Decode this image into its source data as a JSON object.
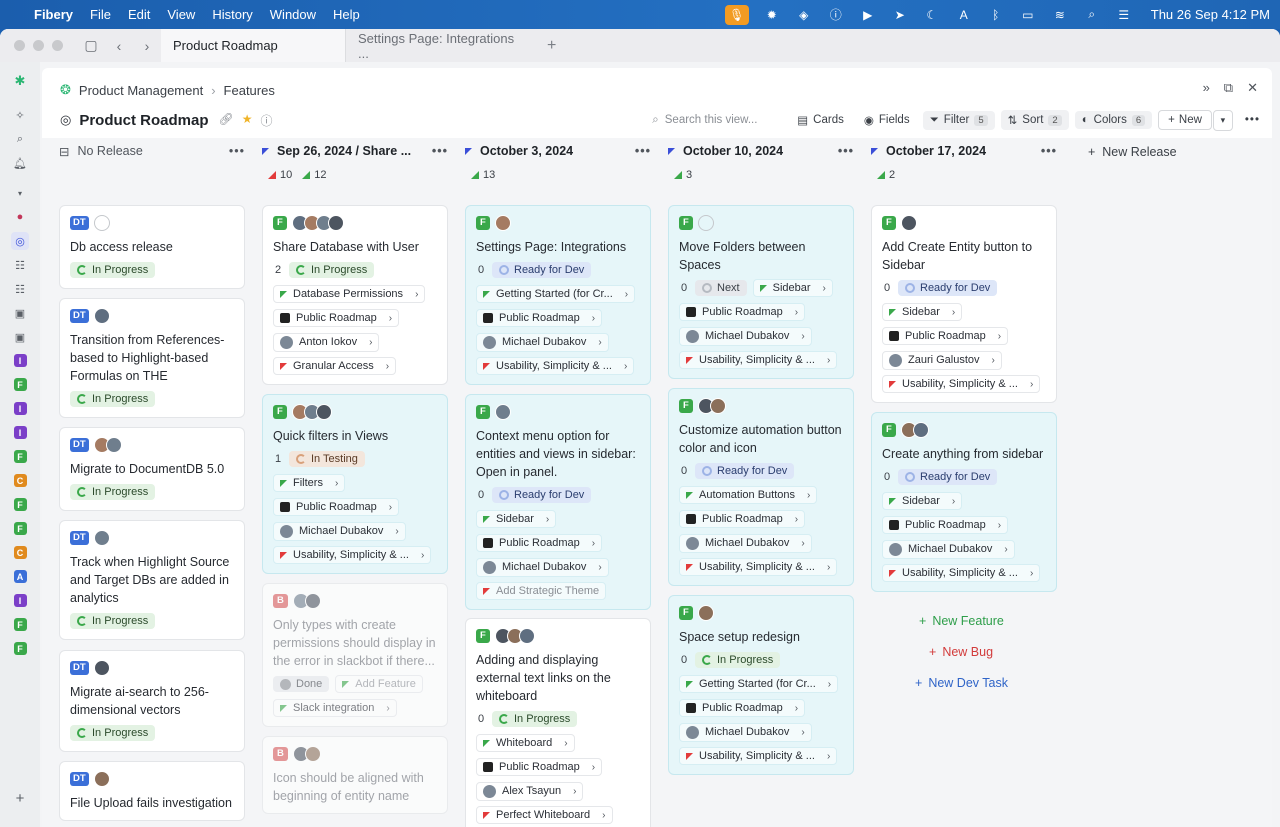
{
  "menubar": {
    "app": "Fibery",
    "items": [
      "File",
      "Edit",
      "View",
      "History",
      "Window",
      "Help"
    ],
    "clock": "Thu 26 Sep  4:12 PM"
  },
  "tabs": [
    {
      "label": "Product Roadmap"
    },
    {
      "label": "Settings Page: Integrations ..."
    }
  ],
  "breadcrumb": {
    "space": "Product Management",
    "database": "Features"
  },
  "view": {
    "title": "Product Roadmap",
    "search_placeholder": "Search this view...",
    "cards_label": "Cards",
    "fields_label": "Fields",
    "filter_label": "Filter",
    "filter_count": "5",
    "sort_label": "Sort",
    "sort_count": "2",
    "colors_label": "Colors",
    "colors_count": "6",
    "new_label": "New"
  },
  "new_release_label": "New Release",
  "sidebar_badges": [
    "I",
    "F",
    "I",
    "I",
    "F",
    "C",
    "F",
    "F",
    "C",
    "A",
    "I",
    "F",
    "F"
  ],
  "columns": [
    {
      "title": "No Release",
      "cards": [
        {
          "badge": "DT",
          "title": "Db access release",
          "rows": [
            {
              "status": "In Progress",
              "kind": "ip"
            }
          ]
        },
        {
          "badge": "DT",
          "title": "Transition from References-based to Highlight-based Formulas on THE",
          "rows": [
            {
              "status": "In Progress",
              "kind": "ip"
            }
          ]
        },
        {
          "badge": "DT",
          "title": "Migrate to DocumentDB 5.0",
          "rows": [
            {
              "status": "In Progress",
              "kind": "ip"
            }
          ]
        },
        {
          "badge": "DT",
          "title": "Track when Highlight Source and Target DBs are added in analytics",
          "rows": [
            {
              "status": "In Progress",
              "kind": "ip"
            }
          ]
        },
        {
          "badge": "DT",
          "title": "Migrate ai-search to 256-dimensional vectors",
          "rows": [
            {
              "status": "In Progress",
              "kind": "ip"
            }
          ]
        },
        {
          "badge": "DT",
          "title": "File Upload fails investigation",
          "rows": []
        }
      ]
    },
    {
      "title": "Sep 26, 2024 / Share ...",
      "stats": {
        "red": "10",
        "green": "12"
      },
      "cards": [
        {
          "badge": "F",
          "title": "Share Database with User",
          "num": "2",
          "status": "In Progress",
          "kind": "ip",
          "pills": [
            "Database Permissions",
            "Public Roadmap",
            "Anton Iokov",
            "Granular Access"
          ]
        },
        {
          "badge": "F",
          "title": "Quick filters in Views",
          "num": "1",
          "status": "In Testing",
          "kind": "it",
          "pills": [
            "Filters",
            "Public Roadmap",
            "Michael Dubakov",
            "Usability, Simplicity & ..."
          ]
        },
        {
          "badge": "B",
          "title": "Only types with create permissions should display in the error in slackbot if there...",
          "status": "Done",
          "kind": "dn",
          "add": "Add Feature",
          "pills": [
            "Slack integration"
          ]
        },
        {
          "badge": "B",
          "title": "Icon should be aligned with beginning of entity name"
        }
      ]
    },
    {
      "title": "October 3, 2024",
      "stats": {
        "green": "13"
      },
      "cards": [
        {
          "badge": "F",
          "title": "Settings Page: Integrations",
          "num": "0",
          "status": "Ready for Dev",
          "kind": "rd",
          "pills": [
            "Getting Started (for Cr...",
            "Public Roadmap",
            "Michael Dubakov",
            "Usability, Simplicity & ..."
          ]
        },
        {
          "badge": "F",
          "title": "Context menu option for entities and views in sidebar: Open in panel.",
          "num": "0",
          "status": "Ready for Dev",
          "kind": "rd",
          "pills": [
            "Sidebar",
            "Public Roadmap",
            "Michael Dubakov"
          ],
          "theme": "Add Strategic Theme"
        },
        {
          "badge": "F",
          "title": "Adding and displaying external text links on the whiteboard",
          "num": "0",
          "status": "In Progress",
          "kind": "ip",
          "pills": [
            "Whiteboard",
            "Public Roadmap",
            "Alex Tsayun",
            "Perfect Whiteboard"
          ]
        }
      ]
    },
    {
      "title": "October 10, 2024",
      "stats": {
        "green": "3"
      },
      "cards": [
        {
          "badge": "F",
          "title": "Move Folders between Spaces",
          "num": "0",
          "status": "Next",
          "kind": "nx",
          "inline": "Sidebar",
          "pills": [
            "Public Roadmap",
            "Michael Dubakov",
            "Usability, Simplicity & ..."
          ]
        },
        {
          "badge": "F",
          "title": "Customize automation button color and icon",
          "num": "0",
          "status": "Ready for Dev",
          "kind": "rd",
          "pills": [
            "Automation Buttons",
            "Public Roadmap",
            "Michael Dubakov",
            "Usability, Simplicity & ..."
          ]
        },
        {
          "badge": "F",
          "title": "Space setup redesign",
          "num": "0",
          "status": "In Progress",
          "kind": "ip",
          "pills": [
            "Getting Started (for Cr...",
            "Public Roadmap",
            "Michael Dubakov",
            "Usability, Simplicity & ..."
          ]
        }
      ]
    },
    {
      "title": "October 17, 2024",
      "stats": {
        "green": "2"
      },
      "cards": [
        {
          "badge": "F",
          "title": "Add Create Entity button to Sidebar",
          "num": "0",
          "status": "Ready for Dev",
          "kind": "rd",
          "pills": [
            "Sidebar",
            "Public Roadmap",
            "Zauri Galustov",
            "Usability, Simplicity & ..."
          ]
        },
        {
          "badge": "F",
          "title": "Create anything from sidebar",
          "num": "0",
          "status": "Ready for Dev",
          "kind": "rd",
          "pills": [
            "Sidebar",
            "Public Roadmap",
            "Michael Dubakov",
            "Usability, Simplicity & ..."
          ]
        }
      ],
      "add_links": {
        "feature": "New Feature",
        "bug": "New Bug",
        "task": "New Dev Task"
      }
    }
  ],
  "colors": {
    "accent": "#3b4fd8",
    "green": "#3aa84a",
    "red": "#e23b3b",
    "teal_card": "#e6f6f9"
  }
}
